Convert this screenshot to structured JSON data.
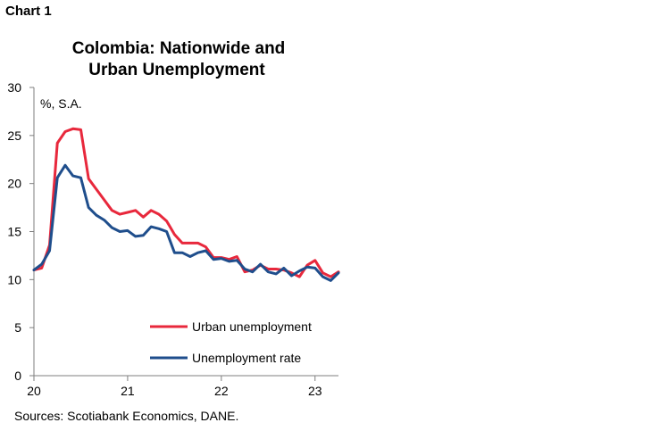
{
  "page": {
    "label": "Chart 1"
  },
  "chart_data": {
    "type": "line",
    "title_lines": [
      "Colombia: Nationwide and",
      "Urban Unemployment"
    ],
    "unit_label": "%, S.A.",
    "xlabel": "",
    "ylabel": "",
    "ylim": [
      0,
      30
    ],
    "yticks": [
      0,
      5,
      10,
      15,
      20,
      25,
      30
    ],
    "xlim": [
      2020,
      2023.25
    ],
    "xticks": [
      {
        "value": 2020,
        "label": "20"
      },
      {
        "value": 2021,
        "label": "21"
      },
      {
        "value": 2022,
        "label": "22"
      },
      {
        "value": 2023,
        "label": "23"
      }
    ],
    "grid": false,
    "legend_placement": "bottom-right",
    "x": [
      "Jan-2020",
      "Feb-2020",
      "Mar-2020",
      "Apr-2020",
      "May-2020",
      "Jun-2020",
      "Jul-2020",
      "Aug-2020",
      "Sep-2020",
      "Oct-2020",
      "Nov-2020",
      "Dec-2020",
      "Jan-2021",
      "Feb-2021",
      "Mar-2021",
      "Apr-2021",
      "May-2021",
      "Jun-2021",
      "Jul-2021",
      "Aug-2021",
      "Sep-2021",
      "Oct-2021",
      "Nov-2021",
      "Dec-2021",
      "Jan-2022",
      "Feb-2022",
      "Mar-2022",
      "Apr-2022",
      "May-2022",
      "Jun-2022",
      "Jul-2022",
      "Aug-2022",
      "Sep-2022",
      "Oct-2022",
      "Nov-2022",
      "Dec-2022",
      "Jan-2023",
      "Feb-2023",
      "Mar-2023",
      "Apr-2023"
    ],
    "series": [
      {
        "name": "Urban unemployment",
        "color": "#e8283c",
        "values": [
          11.0,
          11.2,
          13.6,
          24.2,
          25.4,
          25.7,
          25.6,
          20.5,
          19.4,
          18.3,
          17.2,
          16.8,
          17.0,
          17.2,
          16.5,
          17.2,
          16.8,
          16.1,
          14.7,
          13.8,
          13.8,
          13.8,
          13.4,
          12.3,
          12.3,
          12.1,
          12.4,
          10.8,
          11.0,
          11.5,
          11.1,
          11.1,
          11.0,
          10.7,
          10.3,
          11.5,
          12.0,
          10.7,
          10.3,
          10.8
        ]
      },
      {
        "name": "Unemployment rate",
        "color": "#1f4e8c",
        "values": [
          11.0,
          11.6,
          13.0,
          20.6,
          21.9,
          20.8,
          20.6,
          17.5,
          16.7,
          16.2,
          15.4,
          15.0,
          15.1,
          14.5,
          14.6,
          15.5,
          15.3,
          15.0,
          12.8,
          12.8,
          12.4,
          12.8,
          13.0,
          12.1,
          12.2,
          11.9,
          12.0,
          11.1,
          10.8,
          11.6,
          10.8,
          10.6,
          11.2,
          10.4,
          10.9,
          11.3,
          11.2,
          10.3,
          9.9,
          10.7
        ]
      }
    ],
    "source": "Sources: Scotiabank Economics, DANE."
  }
}
